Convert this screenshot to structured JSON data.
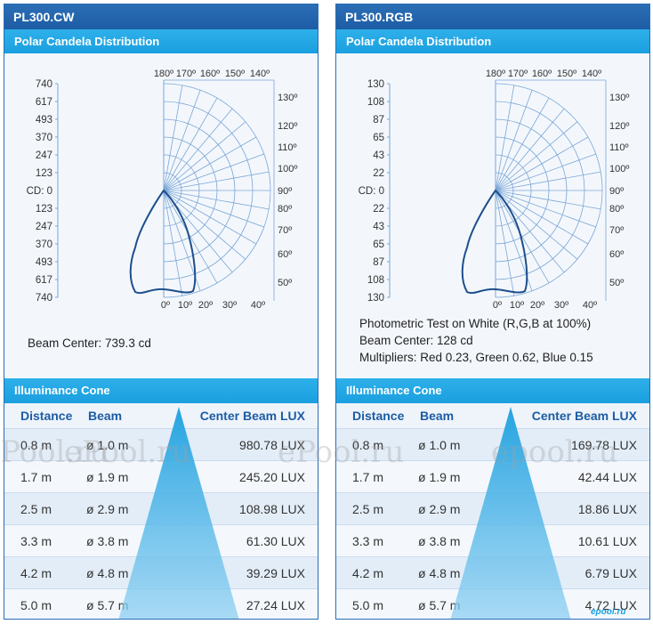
{
  "panels": [
    {
      "model": "PL300.CW",
      "polar_title": "Polar Candela Distribution",
      "cd_label": "CD: 0",
      "candela_ticks": [
        "740",
        "617",
        "493",
        "370",
        "247",
        "123",
        "123",
        "247",
        "370",
        "493",
        "617",
        "740"
      ],
      "top_angles": [
        "180º",
        "170º",
        "160º",
        "150º",
        "140º"
      ],
      "right_angles": [
        "130º",
        "120º",
        "110º",
        "100º",
        "90º",
        "80º",
        "70º",
        "60º",
        "50º"
      ],
      "bottom_angles": [
        "0º",
        "10º",
        "20º",
        "30º",
        "40º"
      ],
      "notes": [
        "Beam Center: 739.3 cd"
      ],
      "cone_title": "Illuminance Cone",
      "headers": {
        "distance": "Distance",
        "beam": "Beam",
        "lux": "Center Beam LUX"
      },
      "rows": [
        {
          "distance": "0.8 m",
          "beam": "ø 1.0 m",
          "lux": "980.78 LUX"
        },
        {
          "distance": "1.7 m",
          "beam": "ø 1.9 m",
          "lux": "245.20 LUX"
        },
        {
          "distance": "2.5 m",
          "beam": "ø 2.9 m",
          "lux": "108.98 LUX"
        },
        {
          "distance": "3.3 m",
          "beam": "ø 3.8 m",
          "lux": "61.30 LUX"
        },
        {
          "distance": "4.2 m",
          "beam": "ø 4.8 m",
          "lux": "39.29 LUX"
        },
        {
          "distance": "5.0 m",
          "beam": "ø 5.7 m",
          "lux": "27.24 LUX"
        }
      ]
    },
    {
      "model": "PL300.RGB",
      "polar_title": "Polar Candela Distribution",
      "cd_label": "CD: 0",
      "candela_ticks": [
        "130",
        "108",
        "87",
        "65",
        "43",
        "22",
        "22",
        "43",
        "65",
        "87",
        "108",
        "130"
      ],
      "top_angles": [
        "180º",
        "170º",
        "160º",
        "150º",
        "140º"
      ],
      "right_angles": [
        "130º",
        "120º",
        "110º",
        "100º",
        "90º",
        "80º",
        "70º",
        "60º",
        "50º"
      ],
      "bottom_angles": [
        "0º",
        "10º",
        "20º",
        "30º",
        "40º"
      ],
      "notes": [
        "Photometric Test on White (R,G,B at 100%)",
        "Beam Center: 128 cd",
        "Multipliers: Red 0.23, Green 0.62, Blue 0.15"
      ],
      "cone_title": "Illuminance Cone",
      "headers": {
        "distance": "Distance",
        "beam": "Beam",
        "lux": "Center Beam LUX"
      },
      "rows": [
        {
          "distance": "0.8 m",
          "beam": "ø 1.0 m",
          "lux": "169.78 LUX"
        },
        {
          "distance": "1.7 m",
          "beam": "ø 1.9 m",
          "lux": "42.44 LUX"
        },
        {
          "distance": "2.5 m",
          "beam": "ø 2.9 m",
          "lux": "18.86 LUX"
        },
        {
          "distance": "3.3 m",
          "beam": "ø 3.8 m",
          "lux": "10.61 LUX"
        },
        {
          "distance": "4.2 m",
          "beam": "ø 4.8 m",
          "lux": "6.79 LUX"
        },
        {
          "distance": "5.0 m",
          "beam": "ø 5.7 m",
          "lux": "4.72 LUX"
        }
      ]
    }
  ],
  "watermarks": [
    "ePool.ru",
    "ePool.ru",
    "ePool.ru",
    "epool.ru"
  ],
  "colors": {
    "dark_blue": "#1d5ca4",
    "light_blue": "#1a9fdf",
    "curve": "#1d4f8c"
  }
}
